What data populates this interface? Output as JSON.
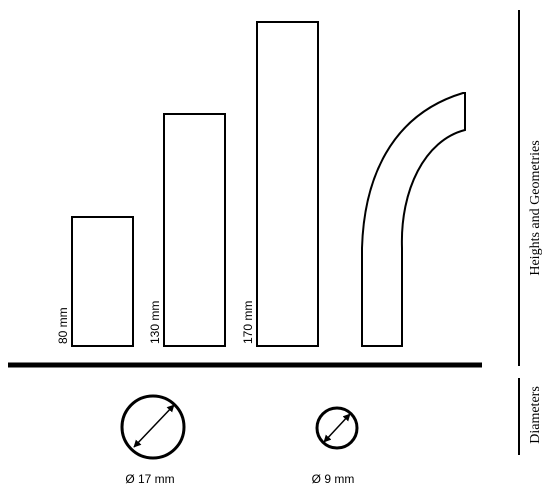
{
  "bars": [
    {
      "height_label": "80 mm",
      "height_mm": 80
    },
    {
      "height_label": "130 mm",
      "height_mm": 130
    },
    {
      "height_label": "170 mm",
      "height_mm": 170
    }
  ],
  "diameters": [
    {
      "label": "Ø 17 mm",
      "diameter_mm": 17
    },
    {
      "label": "Ø 9 mm",
      "diameter_mm": 9
    }
  ],
  "side_labels": {
    "heights": "Heights and Geometries",
    "diameters": "Diameters"
  },
  "colors": {
    "stroke": "#000000",
    "fill": "#ffffff"
  }
}
